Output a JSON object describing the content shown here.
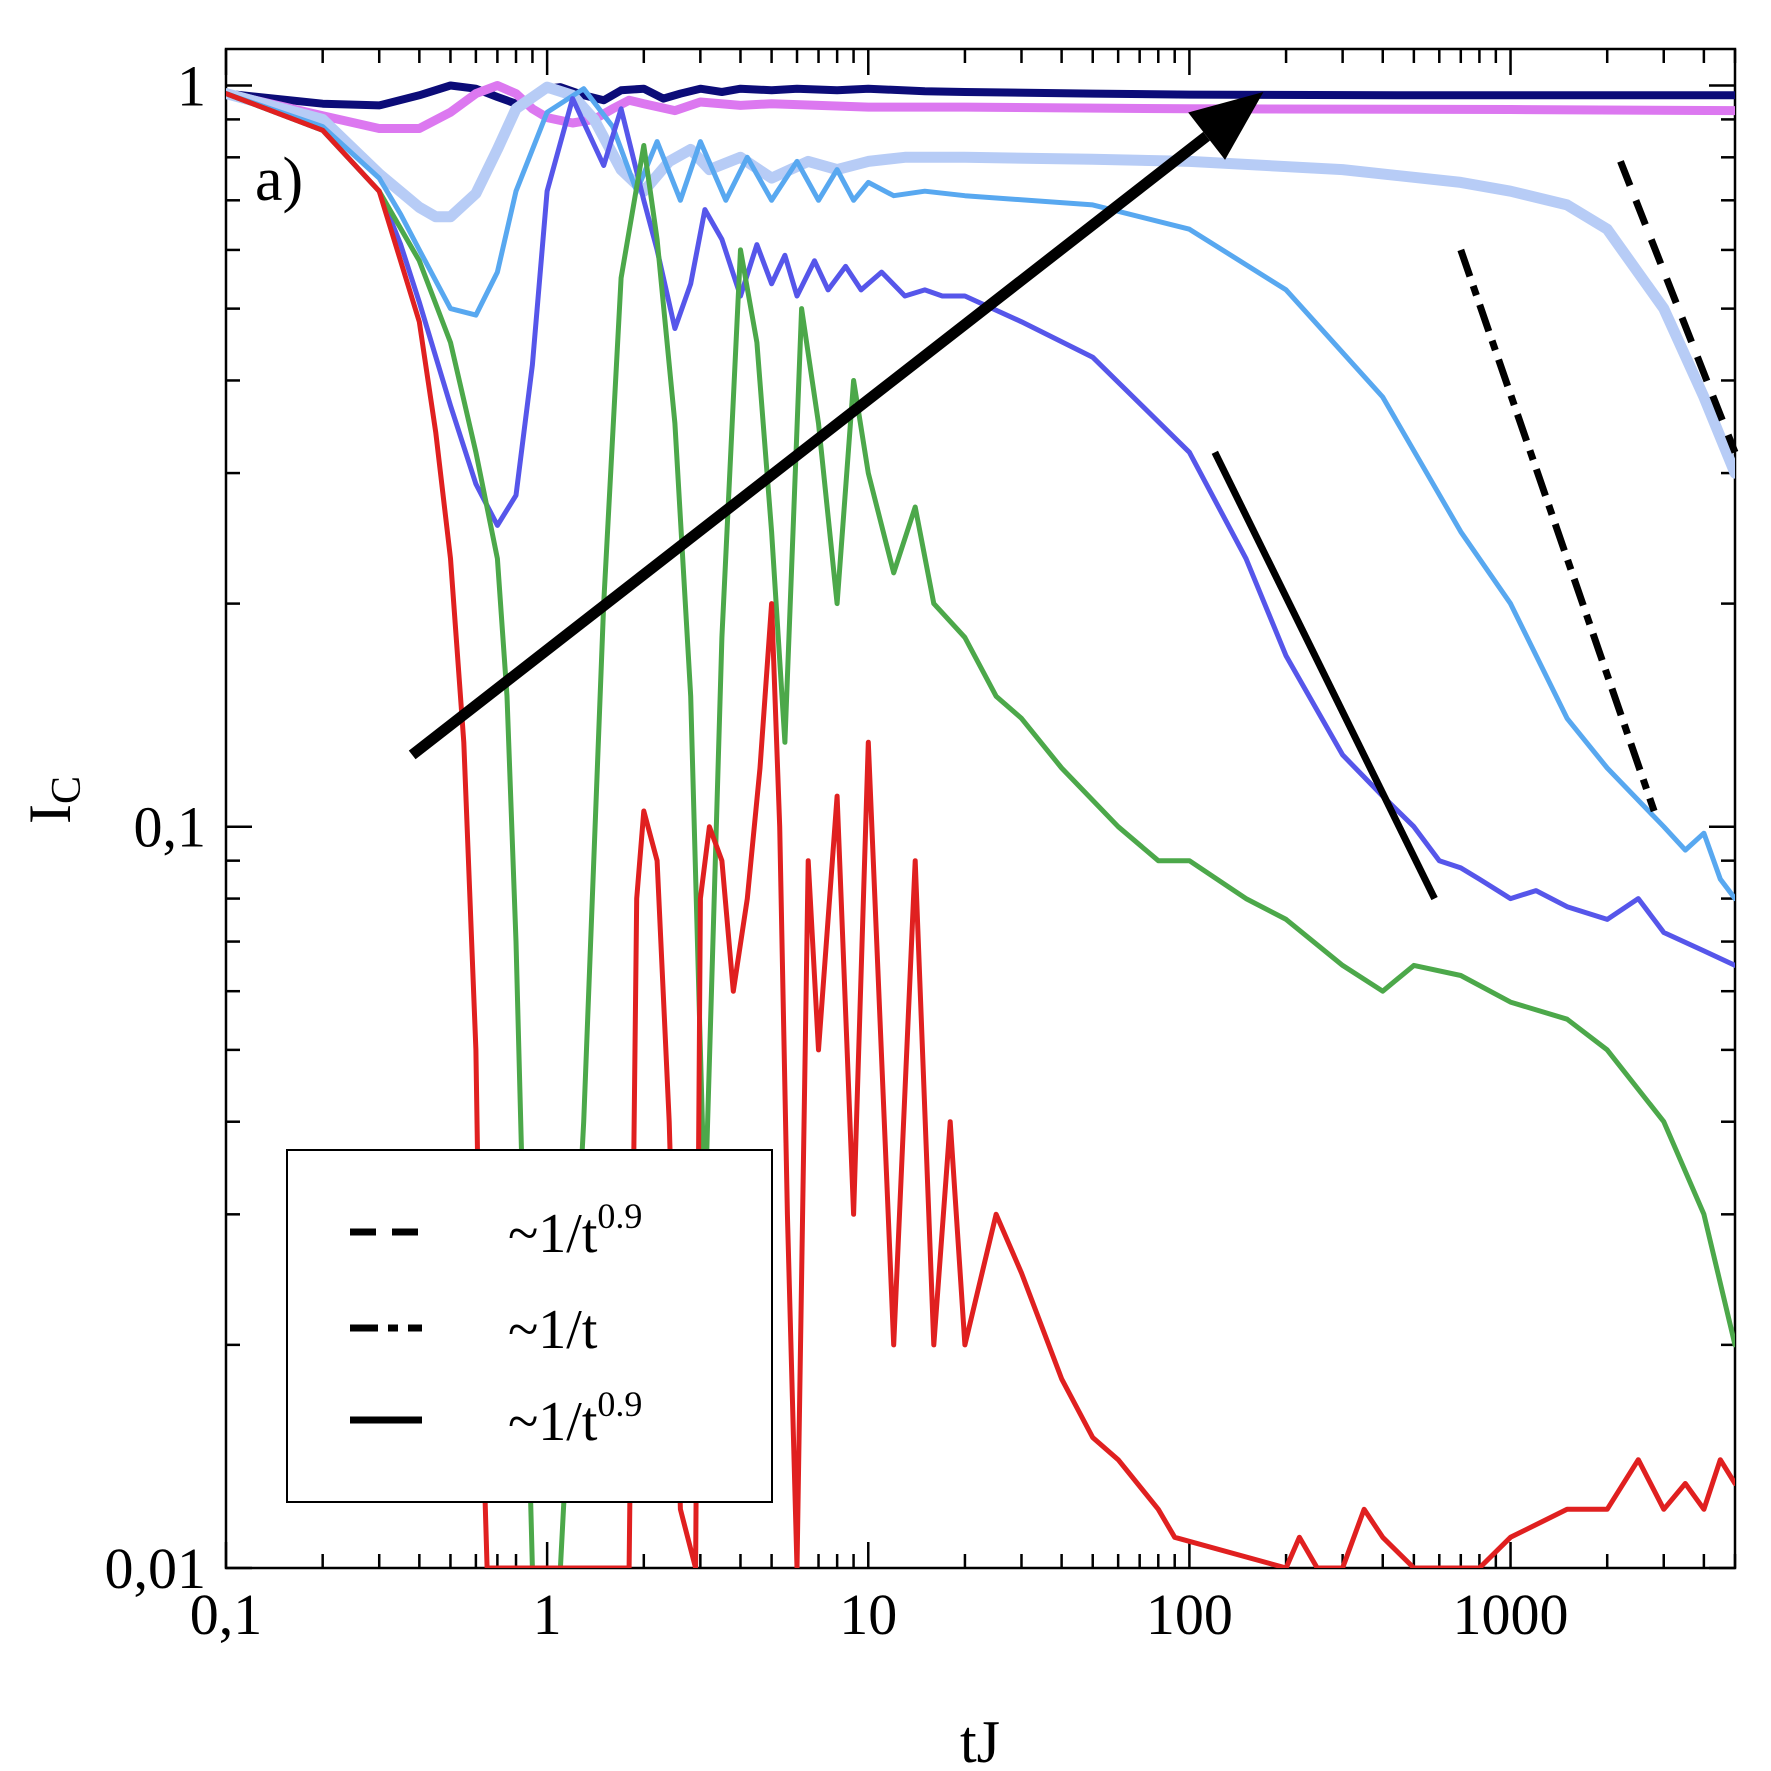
{
  "chart_data": {
    "type": "line",
    "panel_label": "a)",
    "xlabel": "tJ",
    "ylabel": "I",
    "ylabel_subscript": "C",
    "xscale": "log",
    "yscale": "log",
    "xlim": [
      0.1,
      5000
    ],
    "ylim": [
      0.01,
      1.12
    ],
    "xticks": [
      {
        "value": 0.1,
        "label": "0,1"
      },
      {
        "value": 1,
        "label": "1"
      },
      {
        "value": 10,
        "label": "10"
      },
      {
        "value": 100,
        "label": "100"
      },
      {
        "value": 1000,
        "label": "1000"
      }
    ],
    "yticks": [
      {
        "value": 0.01,
        "label": "0,01"
      },
      {
        "value": 0.1,
        "label": "0,1"
      },
      {
        "value": 1,
        "label": "1"
      }
    ],
    "legend": {
      "placement": "bottom-left",
      "entries": [
        {
          "style": "dashed",
          "text": "~1/t",
          "exponent": "0.9"
        },
        {
          "style": "dashdot",
          "text": "~1/t",
          "exponent": ""
        },
        {
          "style": "solid",
          "text": "~1/t",
          "exponent": "0.9"
        }
      ]
    },
    "arrow": {
      "from": [
        0.38,
        0.125
      ],
      "to": [
        170,
        0.98
      ],
      "color": "#000000"
    },
    "series": [
      {
        "color": "#0c0c78",
        "width": 8,
        "x": [
          0.1,
          0.2,
          0.3,
          0.4,
          0.5,
          0.6,
          0.7,
          0.8,
          0.9,
          1.0,
          1.1,
          1.3,
          1.5,
          1.7,
          2.0,
          2.3,
          2.6,
          3.0,
          3.5,
          4.0,
          5.0,
          6.0,
          8.0,
          10,
          15,
          20,
          50,
          100,
          500,
          1000,
          5000
        ],
        "y": [
          0.975,
          0.945,
          0.94,
          0.97,
          1.0,
          0.99,
          0.965,
          0.945,
          0.96,
          0.99,
          0.995,
          0.97,
          0.955,
          0.985,
          0.99,
          0.96,
          0.975,
          0.99,
          0.98,
          0.99,
          0.985,
          0.99,
          0.985,
          0.99,
          0.982,
          0.98,
          0.975,
          0.972,
          0.97,
          0.97,
          0.97
        ]
      },
      {
        "color": "#dc78f0",
        "width": 9,
        "x": [
          0.1,
          0.2,
          0.3,
          0.4,
          0.5,
          0.6,
          0.7,
          0.8,
          0.9,
          1.0,
          1.2,
          1.4,
          1.6,
          1.8,
          2.0,
          2.5,
          3.0,
          4.0,
          5.0,
          7.0,
          10,
          20,
          100,
          1000,
          5000
        ],
        "y": [
          0.975,
          0.91,
          0.875,
          0.875,
          0.92,
          0.975,
          1.0,
          0.975,
          0.93,
          0.905,
          0.89,
          0.9,
          0.93,
          0.955,
          0.945,
          0.925,
          0.95,
          0.94,
          0.945,
          0.94,
          0.935,
          0.935,
          0.93,
          0.928,
          0.925
        ]
      },
      {
        "color": "#b7ccf6",
        "width": 11,
        "x": [
          0.1,
          0.2,
          0.3,
          0.4,
          0.45,
          0.5,
          0.6,
          0.7,
          0.8,
          1.0,
          1.2,
          1.4,
          1.7,
          2.0,
          2.4,
          2.8,
          3.2,
          4.0,
          5.0,
          6.5,
          8.0,
          10,
          13,
          20,
          50,
          100,
          300,
          700,
          1000,
          1500,
          2000,
          3000,
          4000,
          5000
        ],
        "y": [
          0.975,
          0.9,
          0.76,
          0.685,
          0.665,
          0.665,
          0.715,
          0.82,
          0.93,
          0.995,
          0.97,
          0.9,
          0.77,
          0.72,
          0.79,
          0.82,
          0.77,
          0.8,
          0.75,
          0.79,
          0.77,
          0.79,
          0.8,
          0.8,
          0.795,
          0.79,
          0.77,
          0.74,
          0.72,
          0.69,
          0.64,
          0.5,
          0.38,
          0.3
        ]
      },
      {
        "color": "#58a8f0",
        "width": 5,
        "x": [
          0.1,
          0.2,
          0.3,
          0.35,
          0.4,
          0.5,
          0.6,
          0.7,
          0.8,
          1.0,
          1.3,
          1.6,
          1.9,
          2.2,
          2.6,
          3.0,
          3.6,
          4.2,
          5.0,
          6.0,
          7.0,
          8.0,
          9.0,
          10,
          12,
          15,
          20,
          50,
          100,
          200,
          400,
          700,
          1000,
          1500,
          2000,
          3000,
          3500,
          4000,
          4500,
          5000
        ],
        "y": [
          0.975,
          0.88,
          0.75,
          0.67,
          0.6,
          0.5,
          0.49,
          0.56,
          0.72,
          0.92,
          0.99,
          0.88,
          0.72,
          0.84,
          0.7,
          0.84,
          0.7,
          0.8,
          0.7,
          0.79,
          0.7,
          0.77,
          0.7,
          0.74,
          0.71,
          0.72,
          0.71,
          0.69,
          0.64,
          0.53,
          0.38,
          0.25,
          0.2,
          0.14,
          0.12,
          0.1,
          0.093,
          0.098,
          0.085,
          0.08
        ]
      },
      {
        "color": "#5656ea",
        "width": 5,
        "x": [
          0.1,
          0.2,
          0.3,
          0.35,
          0.4,
          0.5,
          0.6,
          0.7,
          0.8,
          0.9,
          1.0,
          1.2,
          1.5,
          1.7,
          2.0,
          2.2,
          2.5,
          2.8,
          3.1,
          3.5,
          4.0,
          4.5,
          5.0,
          5.5,
          6.0,
          6.8,
          7.5,
          8.5,
          9.5,
          11,
          13,
          15,
          17,
          20,
          30,
          50,
          100,
          150,
          200,
          300,
          400,
          500,
          600,
          700,
          800,
          1000,
          1200,
          1500,
          2000,
          2500,
          3000,
          4000,
          5000
        ],
        "y": [
          0.975,
          0.87,
          0.72,
          0.61,
          0.51,
          0.37,
          0.29,
          0.255,
          0.28,
          0.42,
          0.72,
          0.96,
          0.78,
          0.93,
          0.7,
          0.6,
          0.47,
          0.54,
          0.68,
          0.62,
          0.52,
          0.61,
          0.54,
          0.59,
          0.52,
          0.58,
          0.53,
          0.57,
          0.53,
          0.56,
          0.52,
          0.53,
          0.52,
          0.52,
          0.48,
          0.43,
          0.32,
          0.23,
          0.17,
          0.125,
          0.11,
          0.1,
          0.09,
          0.088,
          0.085,
          0.08,
          0.082,
          0.078,
          0.075,
          0.08,
          0.072,
          0.068,
          0.065
        ]
      },
      {
        "color": "#4ca84a",
        "width": 5,
        "x": [
          0.1,
          0.2,
          0.3,
          0.4,
          0.5,
          0.6,
          0.7,
          0.75,
          0.8,
          0.9,
          1.1,
          1.3,
          1.5,
          1.7,
          2.0,
          2.2,
          2.5,
          2.8,
          3.1,
          3.5,
          4.0,
          4.5,
          5.0,
          5.5,
          6.2,
          7.0,
          8.0,
          9.0,
          10,
          12,
          14,
          16,
          20,
          25,
          30,
          40,
          60,
          80,
          100,
          150,
          200,
          300,
          400,
          500,
          700,
          1000,
          1500,
          2000,
          3000,
          4000,
          5000
        ],
        "y": [
          0.975,
          0.87,
          0.72,
          0.58,
          0.45,
          0.32,
          0.23,
          0.15,
          0.07,
          0.01,
          0.01,
          0.04,
          0.2,
          0.55,
          0.83,
          0.62,
          0.35,
          0.15,
          0.03,
          0.18,
          0.6,
          0.45,
          0.25,
          0.13,
          0.5,
          0.35,
          0.2,
          0.4,
          0.3,
          0.22,
          0.27,
          0.2,
          0.18,
          0.15,
          0.14,
          0.12,
          0.1,
          0.09,
          0.09,
          0.08,
          0.075,
          0.065,
          0.06,
          0.065,
          0.063,
          0.058,
          0.055,
          0.05,
          0.04,
          0.03,
          0.02
        ]
      },
      {
        "color": "#e02020",
        "width": 5,
        "x": [
          0.1,
          0.2,
          0.3,
          0.4,
          0.45,
          0.5,
          0.55,
          0.6,
          0.62,
          0.65,
          1.8,
          1.9,
          2.0,
          2.2,
          2.4,
          2.6,
          2.9,
          3.0,
          3.2,
          3.5,
          3.8,
          4.2,
          4.6,
          5.0,
          5.3,
          5.6,
          6.0,
          6.5,
          7.0,
          8.0,
          9.0,
          10,
          12,
          14,
          16,
          18,
          20,
          25,
          30,
          40,
          50,
          60,
          80,
          90,
          200,
          220,
          250,
          300,
          350,
          400,
          500,
          800,
          1000,
          1500,
          2000,
          2500,
          3000,
          3500,
          4000,
          4500,
          5000
        ],
        "y": [
          0.975,
          0.87,
          0.72,
          0.48,
          0.34,
          0.23,
          0.13,
          0.05,
          0.02,
          0.01,
          0.01,
          0.08,
          0.105,
          0.09,
          0.04,
          0.012,
          0.01,
          0.08,
          0.1,
          0.09,
          0.06,
          0.08,
          0.12,
          0.2,
          0.1,
          0.03,
          0.01,
          0.09,
          0.05,
          0.11,
          0.03,
          0.13,
          0.02,
          0.09,
          0.02,
          0.04,
          0.02,
          0.03,
          0.025,
          0.018,
          0.015,
          0.014,
          0.012,
          0.011,
          0.01,
          0.011,
          0.01,
          0.01,
          0.012,
          0.011,
          0.01,
          0.01,
          0.011,
          0.012,
          0.012,
          0.014,
          0.012,
          0.013,
          0.012,
          0.014,
          0.013
        ]
      }
    ],
    "guides": [
      {
        "style": "solid",
        "from": [
          120,
          0.32
        ],
        "to": [
          580,
          0.08
        ]
      },
      {
        "style": "dashdot",
        "from": [
          700,
          0.6
        ],
        "to": [
          2800,
          0.105
        ]
      },
      {
        "style": "dashed",
        "from": [
          2200,
          0.79
        ],
        "to": [
          5000,
          0.32
        ]
      }
    ]
  }
}
